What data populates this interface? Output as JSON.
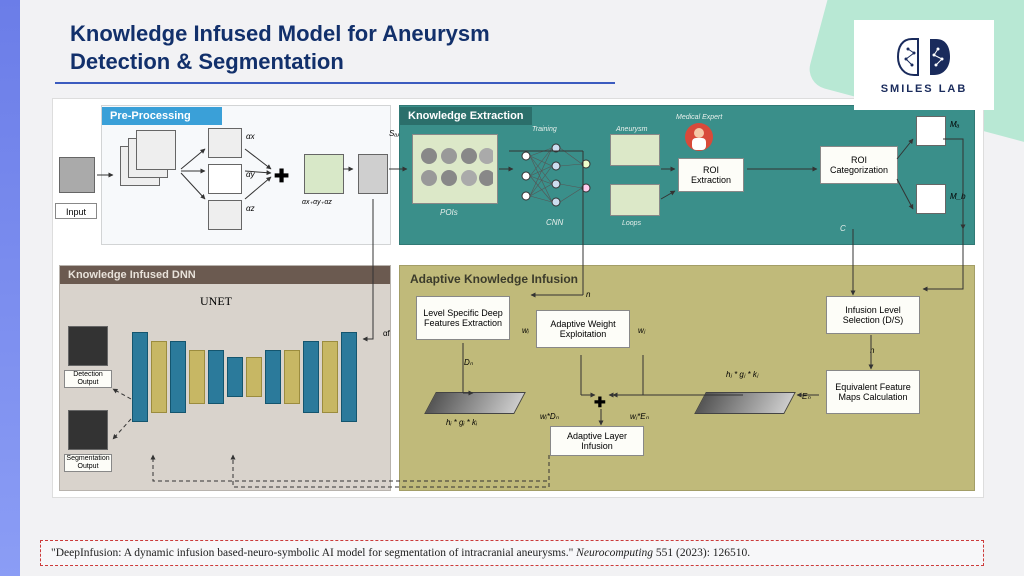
{
  "title": "Knowledge Infused Model for Aneurysm Detection & Segmentation",
  "logo": {
    "text": "SMILES  LAB"
  },
  "colors": {
    "title": "#12306b",
    "underline": "#3b5bbf",
    "leftbar_top": "#6b7de8",
    "corner": "#b8e8d4",
    "preproc_header": "#3aa0d8",
    "ke_bg": "#3a8f8a",
    "dnn_bg": "#d9d3cc",
    "dnn_header": "#6b5a50",
    "aki_bg": "#c0ba7a",
    "cite_border": "#cc3b3b"
  },
  "panels": {
    "preproc": "Pre-Processing",
    "ke": "Knowledge Extraction",
    "dnn": "Knowledge Infused DNN",
    "aki": "Adaptive Knowledge Infusion"
  },
  "labels": {
    "input": "Input",
    "alpha_sum": "αx₊αy₊αz",
    "alpha": "α",
    "ax": "αx",
    "ay": "αy",
    "az": "αz",
    "Sap": "Sₐₚ",
    "unet": "UNET",
    "det_out": "Detection Output",
    "seg_out": "Segmentation Output",
    "pois": "POIs",
    "cnn": "CNN",
    "training": "Training",
    "aneurysm": "Aneurysm",
    "loops": "Loops",
    "medical_expert": "Medical Expert",
    "roi_ext": "ROI Extraction",
    "roi_cat": "ROI Categorization",
    "Ma": "Mₐ",
    "Mb": "M_b",
    "C": "C",
    "level_spec": "Level Specific Deep Features Extraction",
    "adapt_weight": "Adaptive Weight Exploitation",
    "adapt_layer": "Adaptive Layer Infusion",
    "infusion_sel": "Infusion Level Selection (D/S)",
    "equiv_fmap": "Equivalent Feature Maps Calculation",
    "n": "n",
    "Dn": "Dₙ",
    "En": "Eₙ",
    "wi": "wᵢ",
    "wj": "wⱼ",
    "wiDn": "wᵢ*Dₙ",
    "wjEn": "wⱼ*Eₙ",
    "hgk_i": "hᵢ * gᵢ * kᵢ",
    "hgk_j": "hⱼ * gⱼ * kⱼ",
    "af": "αf"
  },
  "unet_bars": [
    {
      "h": 90,
      "c": "b"
    },
    {
      "h": 72,
      "c": "y"
    },
    {
      "h": 72,
      "c": "b"
    },
    {
      "h": 54,
      "c": "y"
    },
    {
      "h": 54,
      "c": "b"
    },
    {
      "h": 40,
      "c": "b"
    },
    {
      "h": 40,
      "c": "y"
    },
    {
      "h": 54,
      "c": "b"
    },
    {
      "h": 54,
      "c": "y"
    },
    {
      "h": 72,
      "c": "b"
    },
    {
      "h": 72,
      "c": "y"
    },
    {
      "h": 90,
      "c": "b"
    }
  ],
  "citation": {
    "text1": "\"DeepInfusion: A dynamic infusion based-neuro-symbolic AI model for segmentation of intracranial aneurysms.\" ",
    "journal": "Neurocomputing",
    "text2": " 551 (2023): 126510."
  }
}
